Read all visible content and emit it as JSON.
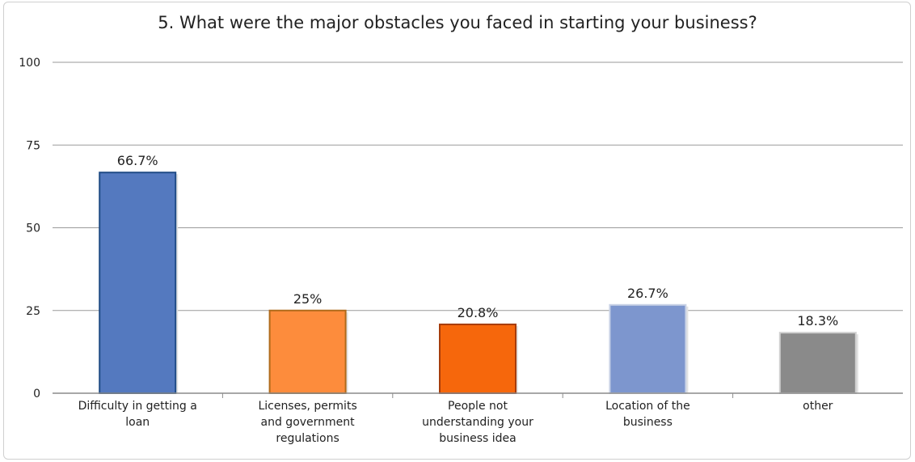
{
  "chart_data": {
    "type": "bar",
    "title": "5. What were the major obstacles you faced in starting your business?",
    "xlabel": "",
    "ylabel": "",
    "ylim": [
      0,
      100
    ],
    "yticks": [
      0,
      25,
      50,
      75,
      100
    ],
    "grid": true,
    "categories": [
      [
        "Difficulty in getting a",
        "loan"
      ],
      [
        "Licenses, permits",
        "and government",
        "regulations"
      ],
      [
        "People not",
        "understanding your",
        "business idea"
      ],
      [
        "Location of the",
        "business"
      ],
      [
        "other"
      ]
    ],
    "values": [
      66.7,
      25,
      20.8,
      26.7,
      18.3
    ],
    "data_labels": [
      "66.7%",
      "25%",
      "20.8%",
      "26.7%",
      "18.3%"
    ],
    "colors": [
      {
        "fill": "#5479bf",
        "stroke": "#204c86"
      },
      {
        "fill": "#fd8c3c",
        "stroke": "#b06a1b"
      },
      {
        "fill": "#f6670c",
        "stroke": "#a63c0a"
      },
      {
        "fill": "#7d96ce",
        "stroke": "#c9d2e6"
      },
      {
        "fill": "#8a8a8a",
        "stroke": "#d0d0d0"
      }
    ]
  }
}
